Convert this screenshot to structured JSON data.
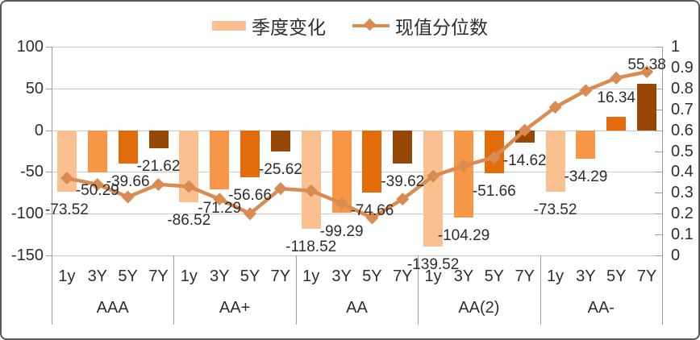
{
  "legend": {
    "bar_label": "季度变化",
    "line_label": "现值分位数"
  },
  "chart_data": {
    "type": "bar+line-combo",
    "title": "",
    "groups": [
      "AAA",
      "AA+",
      "AA",
      "AA(2)",
      "AA-"
    ],
    "tenors": [
      "1y",
      "3Y",
      "5Y",
      "7Y"
    ],
    "series": [
      {
        "name": "季度变化",
        "type": "bar",
        "axis": "left",
        "values": [
          [
            -73.52,
            -50.29,
            -39.66,
            -21.62
          ],
          [
            -86.52,
            -71.29,
            -56.66,
            -25.62
          ],
          [
            -118.52,
            -99.29,
            -74.66,
            -39.62
          ],
          [
            -139.52,
            -104.29,
            -51.66,
            -14.62
          ],
          [
            -73.52,
            -34.29,
            16.34,
            55.38
          ]
        ],
        "data_labels_shown": true
      },
      {
        "name": "现值分位数",
        "type": "line",
        "axis": "right",
        "values": [
          [
            0.37,
            0.34,
            0.28,
            0.34
          ],
          [
            0.33,
            0.27,
            0.2,
            0.32
          ],
          [
            0.31,
            0.25,
            0.18,
            0.27
          ],
          [
            0.38,
            0.43,
            0.47,
            0.6
          ],
          [
            0.71,
            0.79,
            0.85,
            0.88
          ]
        ],
        "data_labels_shown": false
      }
    ],
    "left_axis": {
      "tick_labels": [
        "100",
        "50",
        "0",
        "-50",
        "-100",
        "-150"
      ],
      "range": [
        -150,
        100
      ]
    },
    "right_axis": {
      "tick_labels": [
        "1",
        "0.9",
        "0.8",
        "0.7",
        "0.6",
        "0.5",
        "0.4",
        "0.3",
        "0.2",
        "0.1",
        "0"
      ],
      "range": [
        0,
        1
      ]
    },
    "grid": true,
    "legend_position": "top-center",
    "colors": {
      "bar_1y": "#FAC090",
      "bar_3Y": "#F79646",
      "bar_5Y": "#E36C0A",
      "bar_7Y": "#974706",
      "line": "#D98C52",
      "gridline": "#C9C9C9",
      "axis": "#9E9E9E",
      "text": "#2E2E2E",
      "frame_border": "#58585A"
    }
  }
}
